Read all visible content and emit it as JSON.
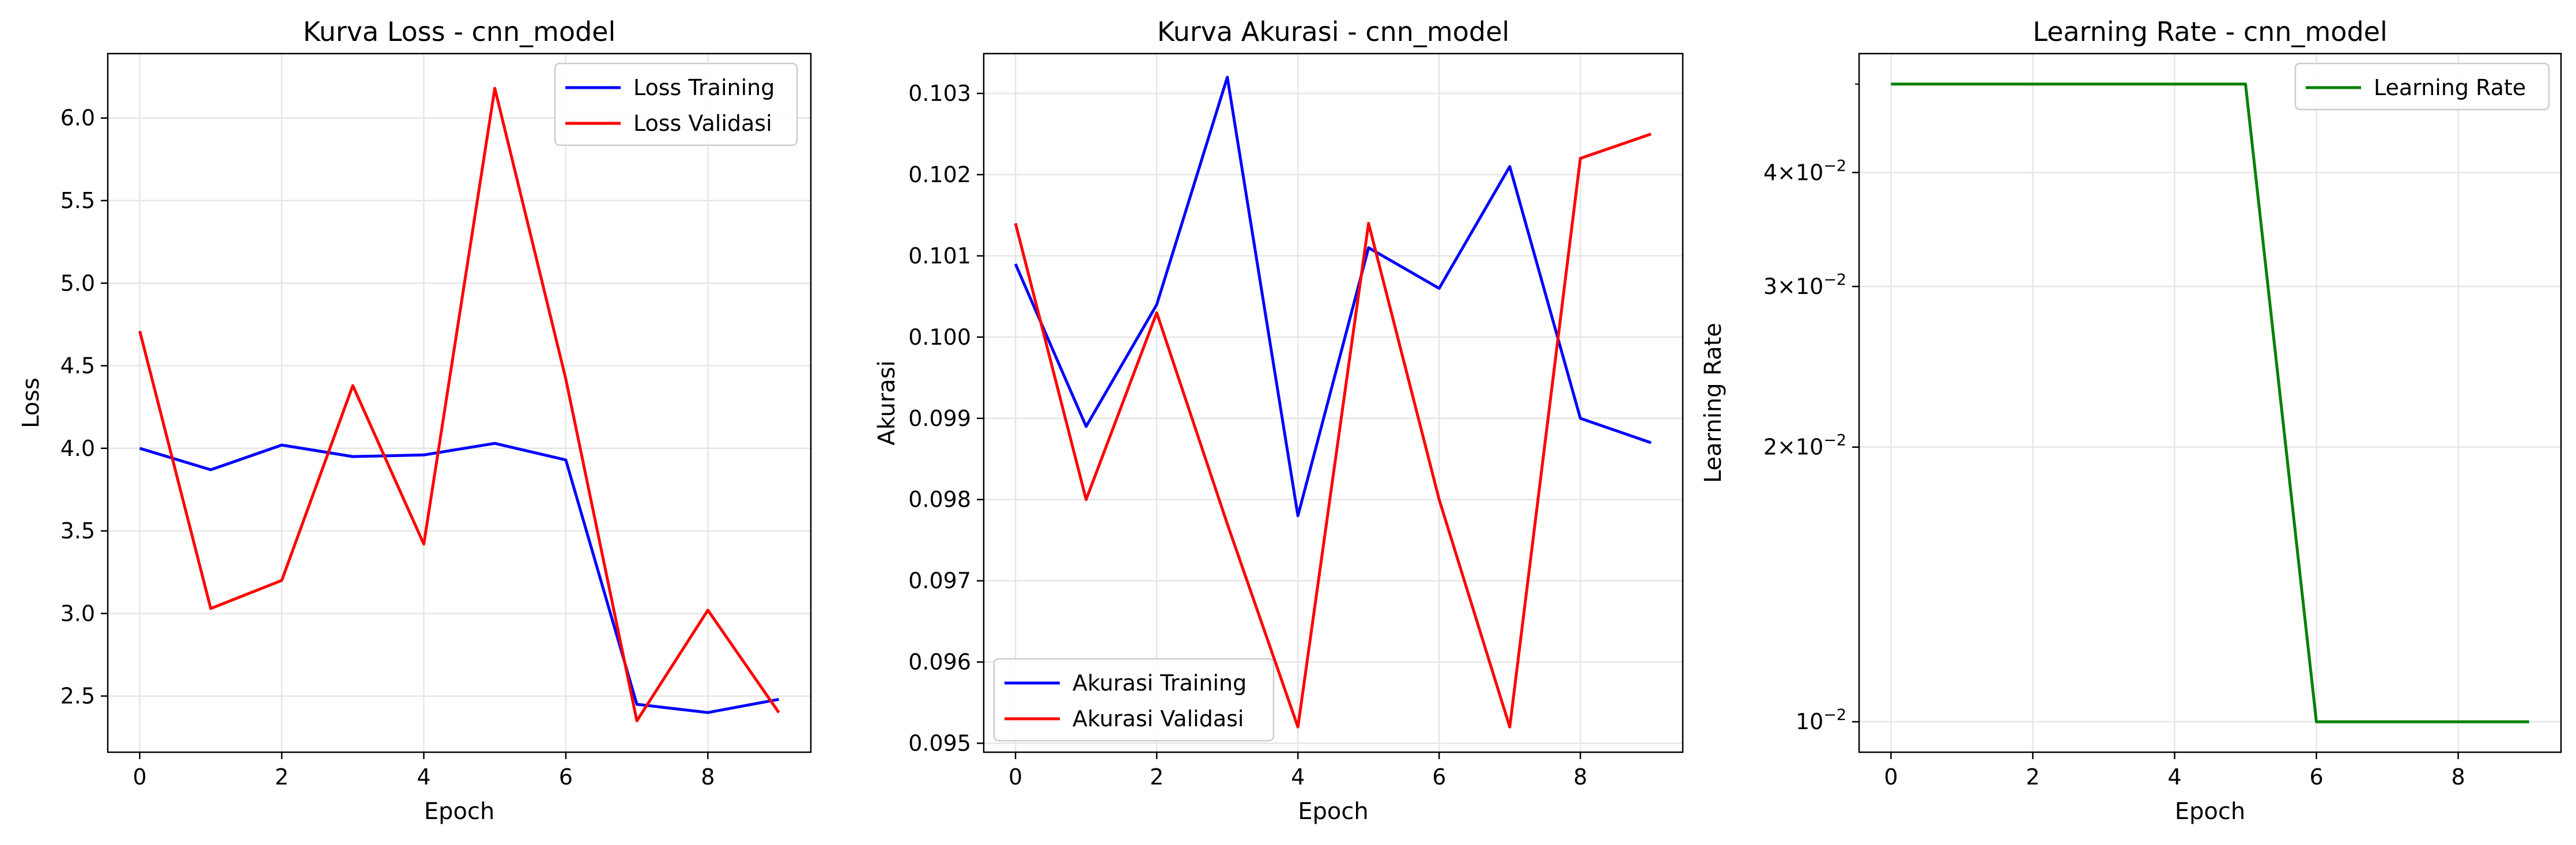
{
  "chart_data": [
    {
      "type": "line",
      "title": "Kurva Loss - cnn_model",
      "xlabel": "Epoch",
      "ylabel": "Loss",
      "x": [
        0,
        1,
        2,
        3,
        4,
        5,
        6,
        7,
        8,
        9
      ],
      "xlim": [
        -0.45,
        9.45
      ],
      "ylim": [
        2.16,
        6.39
      ],
      "xticks": [
        0,
        2,
        4,
        6,
        8
      ],
      "yticks": [
        2.5,
        3.0,
        3.5,
        4.0,
        4.5,
        5.0,
        5.5,
        6.0
      ],
      "ytick_labels": [
        "2.5",
        "3.0",
        "3.5",
        "4.0",
        "4.5",
        "5.0",
        "5.5",
        "6.0"
      ],
      "yscale": "linear",
      "grid": true,
      "legend": "upper right",
      "series": [
        {
          "name": "Loss Training",
          "color": "#0000ff",
          "values": [
            4.0,
            3.87,
            4.02,
            3.95,
            3.96,
            4.03,
            3.93,
            2.45,
            2.4,
            2.48
          ]
        },
        {
          "name": "Loss Validasi",
          "color": "#ff0000",
          "values": [
            4.71,
            3.03,
            3.2,
            4.38,
            3.42,
            6.18,
            4.42,
            2.35,
            3.02,
            2.4
          ]
        }
      ]
    },
    {
      "type": "line",
      "title": "Kurva Akurasi - cnn_model",
      "xlabel": "Epoch",
      "ylabel": "Akurasi",
      "x": [
        0,
        1,
        2,
        3,
        4,
        5,
        6,
        7,
        8,
        9
      ],
      "xlim": [
        -0.45,
        9.45
      ],
      "ylim": [
        0.09489,
        0.10349
      ],
      "xticks": [
        0,
        2,
        4,
        6,
        8
      ],
      "yticks": [
        0.095,
        0.096,
        0.097,
        0.098,
        0.099,
        0.1,
        0.101,
        0.102,
        0.103
      ],
      "ytick_labels": [
        "0.095",
        "0.096",
        "0.097",
        "0.098",
        "0.099",
        "0.100",
        "0.101",
        "0.102",
        "0.103"
      ],
      "yscale": "linear",
      "grid": true,
      "legend": "lower left",
      "series": [
        {
          "name": "Akurasi Training",
          "color": "#0000ff",
          "values": [
            0.1009,
            0.0989,
            0.1004,
            0.1032,
            0.0978,
            0.1011,
            0.1006,
            0.1021,
            0.099,
            0.0987
          ]
        },
        {
          "name": "Akurasi Validasi",
          "color": "#ff0000",
          "values": [
            0.1014,
            0.098,
            0.1003,
            0.0977,
            0.0952,
            0.1014,
            0.098,
            0.0952,
            0.1022,
            0.1025
          ]
        }
      ]
    },
    {
      "type": "line",
      "title": "Learning Rate - cnn_model",
      "xlabel": "Epoch",
      "ylabel": "Learning Rate",
      "x": [
        0,
        1,
        2,
        3,
        4,
        5,
        6,
        7,
        8,
        9
      ],
      "xlim": [
        -0.45,
        9.45
      ],
      "ylim": [
        0.00926,
        0.054
      ],
      "xticks": [
        0,
        2,
        4,
        6,
        8
      ],
      "yticks": [
        0.01,
        0.02,
        0.03,
        0.04
      ],
      "ytick_labels": [
        {
          "base": "2×10",
          "exp": "−2",
          "value": 0.02
        },
        {
          "base": "3×10",
          "exp": "−2",
          "value": 0.03
        },
        {
          "base": "4×10",
          "exp": "−2",
          "value": 0.04
        },
        {
          "base": "10",
          "exp": "−2",
          "value": 0.01
        }
      ],
      "yscale": "log",
      "grid": true,
      "legend": "upper right",
      "series": [
        {
          "name": "Learning Rate",
          "color": "#008000",
          "values": [
            0.05,
            0.05,
            0.05,
            0.05,
            0.05,
            0.05,
            0.01,
            0.01,
            0.01,
            0.01
          ]
        }
      ]
    }
  ]
}
